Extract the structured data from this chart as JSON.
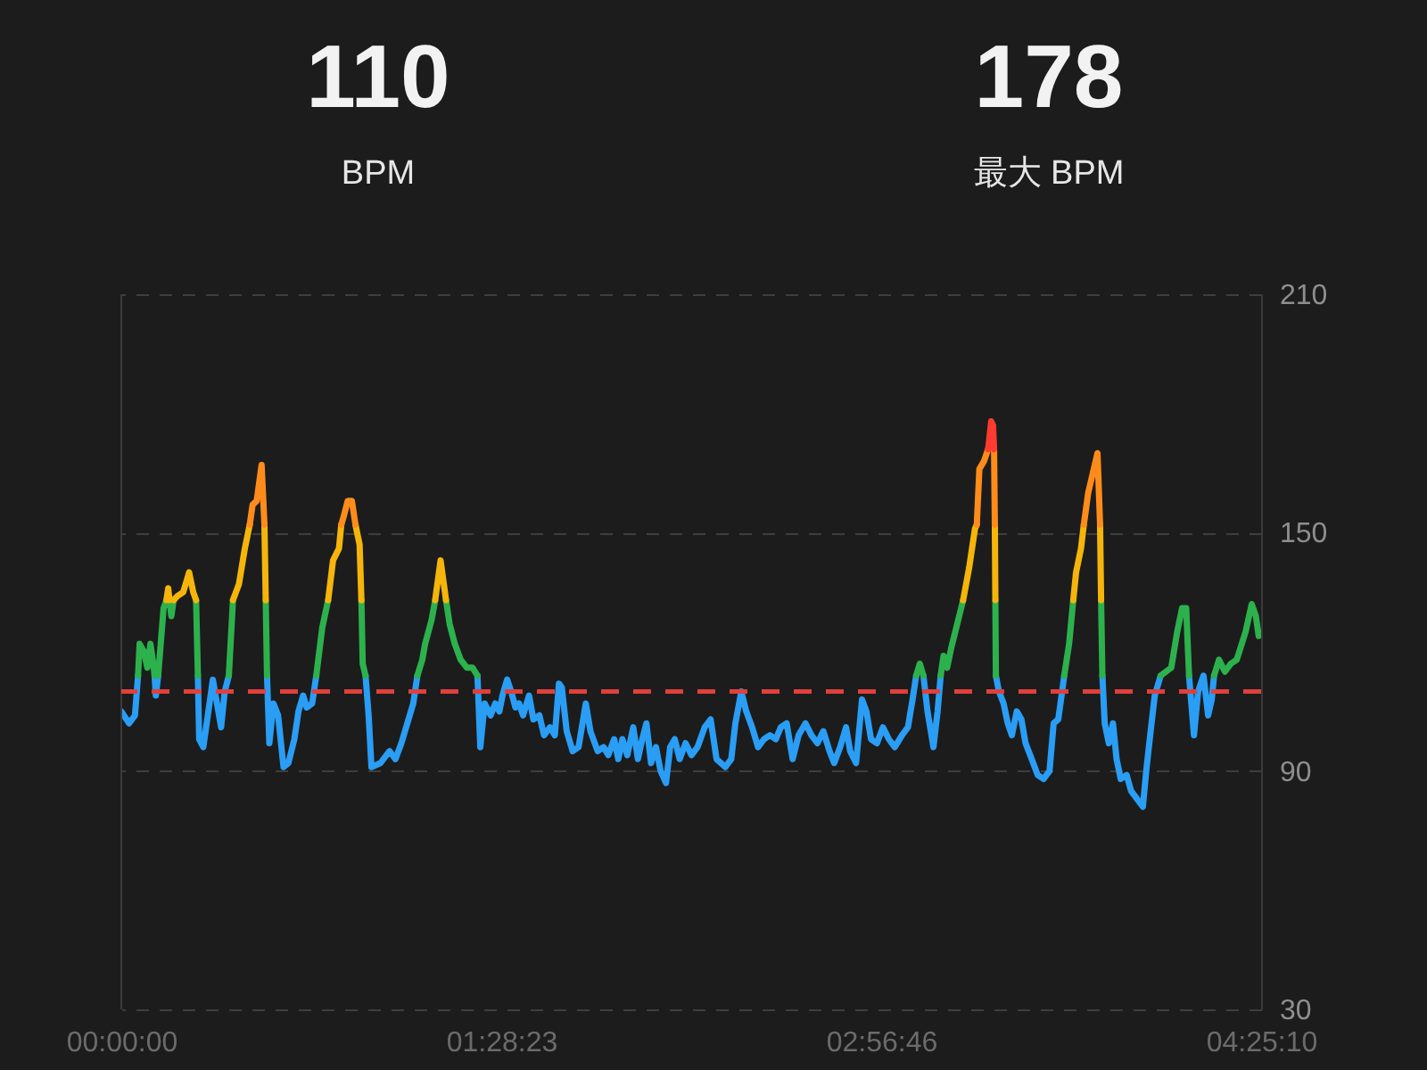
{
  "chart_data": {
    "type": "line",
    "annotations": [
      "110",
      "BPM",
      "178",
      "最大 BPM"
    ],
    "xlim": [
      0,
      4.4194
    ],
    "xticks": [
      {
        "value": 0,
        "label": "00:00:00"
      },
      {
        "value": 1.4731,
        "label": "01:28:23"
      },
      {
        "value": 2.9461,
        "label": "02:56:46"
      },
      {
        "value": 4.4194,
        "label": "04:25:10"
      }
    ],
    "ylim": [
      30,
      210
    ],
    "yticks": [
      30,
      90,
      150,
      210
    ],
    "grid": "y",
    "ref_lines": [
      {
        "axis": "y",
        "value": 110,
        "color": "#e0403c",
        "line_style": "dashed"
      }
    ],
    "series": [
      {
        "color": "#2a9df4",
        "x": [
          0,
          0.03,
          0.053,
          0.065,
          0.097,
          0.129,
          0.134,
          0.143,
          0.22,
          0.297,
          0.302,
          0.318,
          0.355,
          0.387,
          0.401,
          0.417,
          0.491,
          0.565,
          0.574,
          0.59,
          0.608,
          0.629,
          0.648,
          0.671,
          0.687,
          0.705,
          0.719,
          0.74,
          0.756,
          0.851,
          0.947,
          0.959,
          0.97,
          1.005,
          1.04,
          1.063,
          1.086,
          1.132,
          1.148,
          1.265,
          1.381,
          1.392,
          1.409,
          1.432,
          1.45,
          1.466,
          1.478,
          1.496,
          1.512,
          1.528,
          1.542,
          1.558,
          1.581,
          1.598,
          1.621,
          1.639,
          1.662,
          1.681,
          1.697,
          1.708,
          1.727,
          1.75,
          1.773,
          1.801,
          1.819,
          1.847,
          1.87,
          1.888,
          1.911,
          1.927,
          1.943,
          1.962,
          1.985,
          2.003,
          2.02,
          2.036,
          2.054,
          2.073,
          2.091,
          2.112,
          2.128,
          2.146,
          2.165,
          2.188,
          2.211,
          2.234,
          2.262,
          2.285,
          2.308,
          2.342,
          2.365,
          2.381,
          2.404,
          2.423,
          2.446,
          2.469,
          2.492,
          2.515,
          2.538,
          2.557,
          2.58,
          2.603,
          2.626,
          2.653,
          2.676,
          2.699,
          2.722,
          2.746,
          2.764,
          2.787,
          2.81,
          2.826,
          2.849,
          2.872,
          2.889,
          2.907,
          2.93,
          2.953,
          2.976,
          2.999,
          3.027,
          3.05,
          3.068,
          3.082,
          3.096,
          3.11,
          3.126,
          3.149,
          3.165,
          3.177,
          3.284,
          3.391,
          3.403,
          3.421,
          3.437,
          3.453,
          3.472,
          3.49,
          3.506,
          3.53,
          3.553,
          3.576,
          3.599,
          3.615,
          3.633,
          3.652,
          3.656,
          3.73,
          3.804,
          3.813,
          3.829,
          3.845,
          3.859,
          3.875,
          3.898,
          3.915,
          3.938,
          3.961,
          3.974,
          3.991,
          4.007,
          4.03,
          4.085,
          4.14,
          4.159,
          4.175,
          4.196,
          4.214,
          4.228,
          4.237
        ],
        "values": [
          105,
          102,
          104,
          114,
          null,
          114,
          109,
          114,
          null,
          114,
          98,
          96,
          113,
          101,
          110,
          114,
          null,
          114,
          97,
          107,
          104,
          91,
          92,
          98,
          105,
          109,
          106,
          107,
          114,
          null,
          114,
          104,
          91,
          92,
          95,
          93,
          97,
          107,
          114,
          null,
          114,
          96,
          107,
          104,
          107,
          105,
          109,
          113,
          110,
          106,
          107,
          104,
          109,
          103,
          104,
          99,
          101,
          99,
          112,
          111,
          100,
          95,
          96,
          107,
          100,
          95,
          96,
          94,
          98,
          93,
          98,
          94,
          101,
          93,
          98,
          102,
          92,
          96,
          90,
          87,
          96,
          98,
          93,
          97,
          94,
          96,
          101,
          103,
          93,
          91,
          93,
          102,
          110,
          105,
          101,
          96,
          98,
          99,
          98,
          101,
          102,
          93,
          99,
          102,
          99,
          97,
          100,
          95,
          92,
          96,
          101,
          95,
          92,
          108,
          105,
          98,
          97,
          101,
          98,
          96,
          99,
          101,
          108,
          114,
          null,
          114,
          105,
          96,
          105,
          114,
          null,
          114,
          110,
          107,
          102,
          99,
          105,
          103,
          97,
          93,
          89,
          88,
          90,
          102,
          103,
          112,
          114,
          null,
          114,
          102,
          97,
          102,
          93,
          88,
          89,
          85,
          83,
          81,
          90,
          100,
          109,
          114,
          null,
          114,
          99,
          110,
          114,
          104,
          108,
          114
        ]
      },
      {
        "color": "#2db14d",
        "x": [
          0.065,
          0.071,
          0.088,
          0.101,
          0.113,
          0.124,
          0.129,
          0.136,
          0.143,
          0.164,
          0.175,
          0.181,
          0.187,
          0.194,
          0.203,
          0.247,
          0.29,
          0.297,
          0.357,
          0.417,
          0.433,
          0.497,
          0.56,
          0.565,
          0.66,
          0.756,
          0.779,
          0.802,
          0.867,
          0.931,
          0.936,
          0.947,
          1.048,
          1.148,
          1.167,
          1.178,
          1.203,
          1.217,
          1.238,
          1.259,
          1.273,
          1.293,
          1.316,
          1.34,
          1.362,
          1.381,
          2.232,
          3.082,
          3.096,
          3.11,
          3.144,
          3.177,
          3.188,
          3.202,
          3.218,
          3.264,
          3.327,
          3.389,
          3.391,
          3.524,
          3.656,
          3.675,
          3.691,
          3.745,
          3.799,
          3.804,
          3.916,
          4.03,
          4.071,
          4.094,
          4.113,
          4.129,
          4.14,
          4.188,
          4.237,
          4.256,
          4.279,
          4.302,
          4.325,
          4.359,
          4.383,
          4.399,
          4.41
        ],
        "values": [
          114,
          122,
          120,
          116,
          122,
          117,
          114,
          null,
          114,
          131,
          133,
          null,
          133,
          129,
          133,
          null,
          133,
          114,
          null,
          114,
          133,
          null,
          133,
          114,
          null,
          114,
          126,
          133,
          null,
          133,
          117,
          114,
          null,
          114,
          118,
          122,
          128,
          133,
          null,
          133,
          127,
          122,
          118,
          116,
          116,
          114,
          null,
          114,
          117,
          114,
          null,
          114,
          119,
          116,
          121,
          133,
          null,
          133,
          114,
          null,
          114,
          122,
          133,
          null,
          133,
          114,
          null,
          114,
          116,
          125,
          131,
          131,
          114,
          null,
          114,
          118,
          115,
          117,
          118,
          125,
          132,
          129,
          124
        ]
      },
      {
        "color": "#f5b50a",
        "x": [
          0.175,
          0.182,
          0.187,
          0.195,
          0.203,
          0.217,
          0.24,
          0.263,
          0.279,
          0.29,
          0.362,
          0.433,
          0.456,
          0.479,
          0.498,
          0.527,
          0.555,
          0.56,
          0.681,
          0.802,
          0.821,
          0.844,
          0.853,
          0.88,
          0.908,
          0.924,
          0.931,
          1.074,
          1.217,
          1.238,
          1.259,
          2.262,
          3.264,
          3.287,
          3.31,
          3.317,
          3.352,
          3.387,
          3.389,
          3.54,
          3.691,
          3.702,
          3.721,
          3.732,
          3.764,
          3.795,
          3.799
        ],
        "values": [
          133,
          136,
          133,
          null,
          133,
          134,
          135,
          140,
          135,
          133,
          null,
          133,
          137,
          146,
          152,
          null,
          152,
          133,
          null,
          133,
          143,
          146,
          152,
          null,
          152,
          147,
          133,
          null,
          133,
          143,
          133,
          null,
          133,
          141,
          151,
          152,
          null,
          152,
          133,
          null,
          133,
          140,
          146,
          152,
          null,
          152,
          133
        ]
      },
      {
        "color": "#ff8c1a",
        "x": [
          0.498,
          0.509,
          0.525,
          0.544,
          0.555,
          0.704,
          0.853,
          0.862,
          0.878,
          0.894,
          0.908,
          2.113,
          3.317,
          3.327,
          3.345,
          3.361,
          3.373,
          3.384,
          3.387,
          3.56,
          3.732,
          3.749,
          3.767,
          3.785,
          3.795
        ],
        "values": [
          152,
          157,
          158,
          167,
          152,
          null,
          152,
          154,
          158,
          158,
          152,
          null,
          152,
          166,
          168,
          171,
          null,
          171,
          152,
          null,
          152,
          160,
          165,
          170,
          152
        ]
      },
      {
        "color": "#ff3b30",
        "x": [
          3.361,
          3.373,
          3.38,
          3.384
        ],
        "values": [
          171,
          178,
          177,
          171
        ]
      }
    ]
  }
}
